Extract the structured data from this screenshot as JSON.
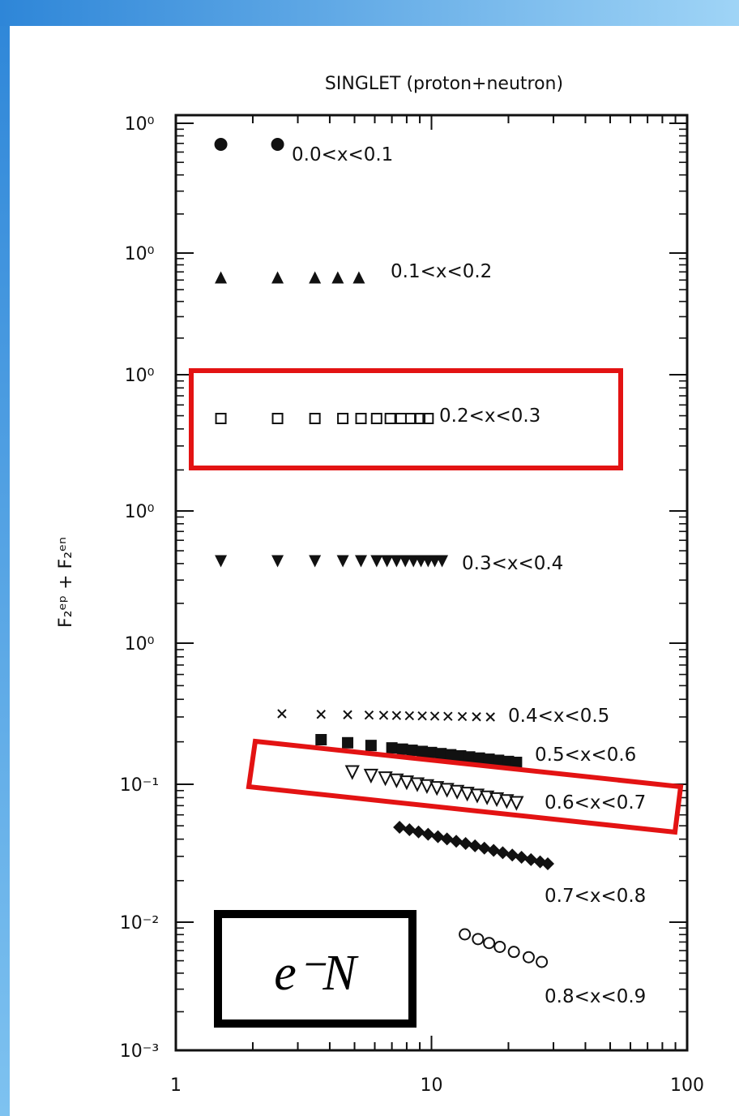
{
  "chart_data": {
    "type": "scatter",
    "title": "SINGLET   (proton+neutron)",
    "ylabel": "F₂ᵉᵖ + F₂ᵉⁿ",
    "xlabel": "",
    "x_scale": "log",
    "xlim": [
      1,
      100
    ],
    "x_tick_labels": [
      "1",
      "10",
      "100"
    ],
    "y_tick_labels": [
      "10⁰",
      "10⁰",
      "10⁰",
      "10⁰",
      "10⁰",
      "10⁻¹",
      "10⁻²",
      "10⁻³"
    ],
    "y_scale": "log (stacked, each bin offset by one decade)",
    "inset_label": "e⁻N",
    "highlighted_series": [
      "0.2<x<0.3",
      "0.6<x<0.7"
    ],
    "highlight_color": "#e31313",
    "series": [
      {
        "name": "0.0<x<0.1",
        "marker": "filled-circle",
        "x": [
          1.5,
          2.5
        ]
      },
      {
        "name": "0.1<x<0.2",
        "marker": "filled-triangle-up",
        "x": [
          1.5,
          2.5,
          3.5,
          4.3,
          5.2
        ]
      },
      {
        "name": "0.2<x<0.3",
        "marker": "open-square",
        "x": [
          1.5,
          2.5,
          3.5,
          4.5,
          5.3,
          6.1,
          6.9,
          7.6,
          8.3,
          9.0,
          9.7
        ]
      },
      {
        "name": "0.3<x<0.4",
        "marker": "filled-triangle-down",
        "x": [
          1.5,
          2.5,
          3.5,
          4.5,
          5.3,
          6.1,
          6.7,
          7.3,
          7.9,
          8.5,
          9.1,
          9.7,
          10.3,
          11.0
        ]
      },
      {
        "name": "0.4<x<0.5",
        "marker": "cross",
        "x": [
          2.6,
          3.7,
          4.7,
          5.7,
          6.5,
          7.3,
          8.2,
          9.2,
          10.3,
          11.6,
          13.2,
          15.0,
          17.0
        ]
      },
      {
        "name": "0.5<x<0.6",
        "marker": "filled-square",
        "x": [
          3.7,
          4.7,
          5.8,
          7.0,
          7.7,
          8.4,
          9.2,
          10.0,
          10.9,
          11.9,
          13.0,
          14.1,
          15.4,
          16.8,
          18.3,
          20.0,
          21.5
        ]
      },
      {
        "name": "0.6<x<0.7",
        "marker": "open-triangle-down",
        "x": [
          4.9,
          5.8,
          6.6,
          7.3,
          8.0,
          8.8,
          9.6,
          10.5,
          11.5,
          12.6,
          13.8,
          15.1,
          16.5,
          18.0,
          19.7,
          21.5
        ]
      },
      {
        "name": "0.7<x<0.8",
        "marker": "filled-diamond",
        "x": [
          7.5,
          8.2,
          8.9,
          9.7,
          10.6,
          11.5,
          12.5,
          13.6,
          14.8,
          16.1,
          17.5,
          19.0,
          20.7,
          22.5,
          24.5,
          26.6,
          28.5
        ]
      },
      {
        "name": "0.8<x<0.9",
        "marker": "open-circle",
        "x": [
          13.5,
          15.2,
          16.8,
          18.5,
          21.0,
          24.0,
          27.0
        ]
      }
    ]
  }
}
